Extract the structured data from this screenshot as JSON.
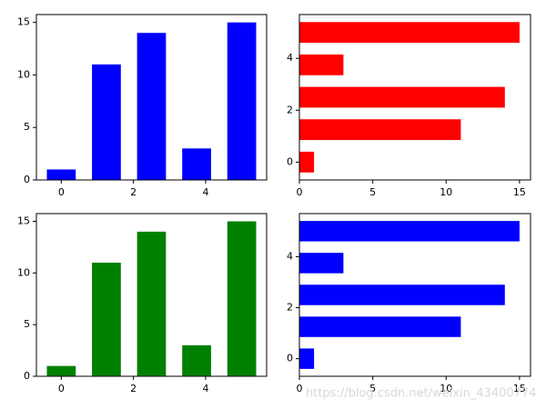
{
  "chart_data": [
    {
      "type": "bar",
      "x": [
        0,
        1.25,
        2.5,
        3.75,
        5
      ],
      "values": [
        1,
        11,
        14,
        3,
        15
      ],
      "color": "#0000ff",
      "xlim": [
        -0.69,
        5.69
      ],
      "xticks": [
        0,
        2,
        4
      ],
      "ylim": [
        0,
        15.75
      ],
      "yticks": [
        0,
        5,
        10,
        15
      ],
      "grid": false
    },
    {
      "type": "barh",
      "x": [
        0,
        1.25,
        2.5,
        3.75,
        5
      ],
      "values": [
        1,
        11,
        14,
        3,
        15
      ],
      "color": "#ff0000",
      "xlim": [
        0,
        15.75
      ],
      "xticks": [
        0,
        5,
        10,
        15
      ],
      "ylim": [
        -0.69,
        5.69
      ],
      "yticks": [
        0,
        2,
        4
      ],
      "grid": false
    },
    {
      "type": "bar",
      "x": [
        0,
        1.25,
        2.5,
        3.75,
        5
      ],
      "values": [
        1,
        11,
        14,
        3,
        15
      ],
      "color": "#008000",
      "xlim": [
        -0.69,
        5.69
      ],
      "xticks": [
        0,
        2,
        4
      ],
      "ylim": [
        0,
        15.75
      ],
      "yticks": [
        0,
        5,
        10,
        15
      ],
      "grid": false
    },
    {
      "type": "barh",
      "x": [
        0,
        1.25,
        2.5,
        3.75,
        5
      ],
      "values": [
        1,
        11,
        14,
        3,
        15
      ],
      "color": "#0000ff",
      "xlim": [
        0,
        15.75
      ],
      "xticks": [
        0,
        5,
        10,
        15
      ],
      "ylim": [
        -0.69,
        5.69
      ],
      "yticks": [
        0,
        2,
        4
      ],
      "grid": false
    }
  ],
  "watermark": "https://blog.csdn.net/weixin_43400774"
}
